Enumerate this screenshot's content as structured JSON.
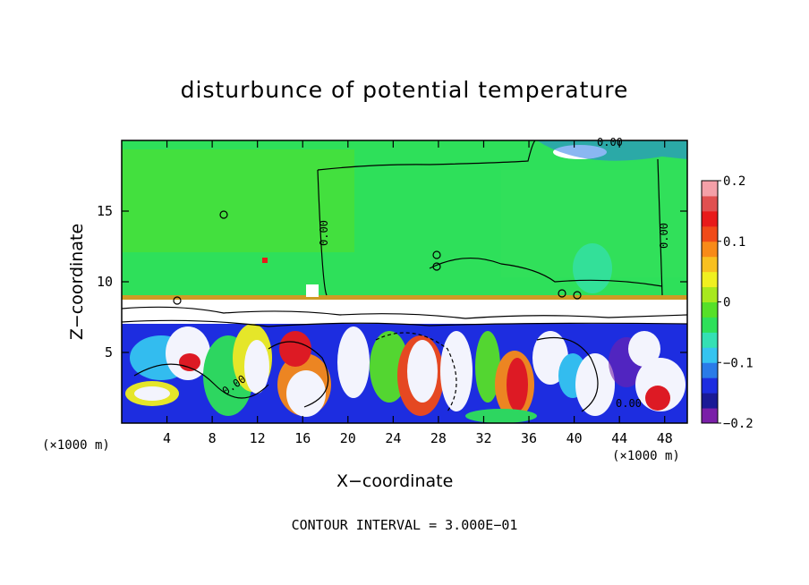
{
  "chart_data": {
    "type": "heatmap",
    "title": "disturbunce of potential temperature",
    "xlabel": "X−coordinate",
    "ylabel": "Z−coordinate",
    "x_unit": "(×1000 m)",
    "x_ticks": [
      4,
      8,
      12,
      16,
      20,
      24,
      28,
      32,
      36,
      40,
      44,
      48
    ],
    "y_ticks": [
      5,
      10,
      15
    ],
    "xlim": [
      0,
      50
    ],
    "ylim": [
      0,
      20
    ],
    "colorbar": {
      "ticks": [
        "0.2",
        "0.1",
        "0",
        "−0.1",
        "−0.2"
      ],
      "tick_values": [
        0.2,
        0.1,
        0,
        -0.1,
        -0.2
      ],
      "range": [
        -0.2,
        0.2
      ],
      "colors": [
        "#7a1fa8",
        "#1a1a96",
        "#1d2de0",
        "#2a7be8",
        "#35c4f0",
        "#34e0b4",
        "#2ee05a",
        "#56e028",
        "#a8e81e",
        "#f0f020",
        "#f8c020",
        "#f88a18",
        "#f04a18",
        "#e81a1a",
        "#e05050",
        "#f4a0a8"
      ]
    },
    "contour_labels": [
      "0.00",
      "0.00",
      "0.00",
      "0.00",
      "0.00"
    ],
    "contour_interval": "CONTOUR INTERVAL = 3.000E−01",
    "field_regions": [
      {
        "z_range": [
          8.7,
          19.5
        ],
        "value": 0.0,
        "description_color": "green"
      },
      {
        "z_range": [
          0,
          8.5
        ],
        "value": "mixed",
        "description_color": "turbulent"
      }
    ]
  }
}
